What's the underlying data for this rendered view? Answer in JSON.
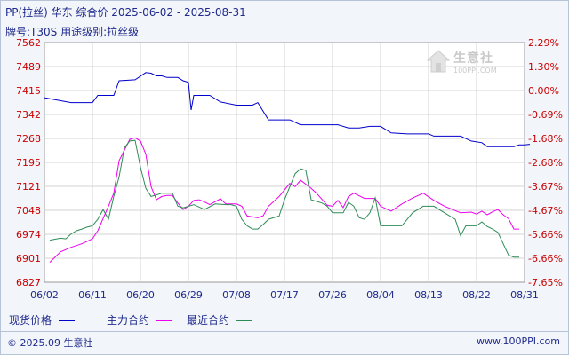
{
  "header": {
    "title": "PP(拉丝) 华东 综合价 2025-06-02 - 2025-08-31",
    "subtitle": "牌号:T30S 用途级别:拉丝级"
  },
  "watermark": {
    "text": "生意社",
    "url": "100PPI.COM"
  },
  "legend": {
    "spot": "现货价格",
    "main": "主力合约",
    "recent": "最近合约"
  },
  "footer": {
    "copyright": "© 2025.09 生意社",
    "url": "www.100PPI.com"
  },
  "colors": {
    "spot": "#0000cc",
    "main": "#ee00ee",
    "recent": "#2e8b57",
    "axis_left": "#cc0000",
    "axis_right": "#cc0000",
    "grid": "#d3d3d3",
    "plot_bg": "#ffffff",
    "text": "#1f2a8c"
  },
  "chart_data": {
    "type": "line",
    "x_ticks": [
      "06/02",
      "06/11",
      "06/20",
      "06/29",
      "07/08",
      "07/17",
      "07/26",
      "08/04",
      "08/13",
      "08/22",
      "08/31"
    ],
    "y_ticks_left": [
      "7562",
      "7489",
      "7415",
      "7342",
      "7268",
      "7195",
      "7121",
      "7048",
      "6974",
      "6901",
      "6827"
    ],
    "y_ticks_right": [
      "2.29%",
      "1.30%",
      "0.00%",
      "-0.69%",
      "-1.68%",
      "-2.68%",
      "-3.67%",
      "-4.67%",
      "-5.66%",
      "-6.66%",
      "-7.65%"
    ],
    "ylim": [
      6827,
      7562
    ],
    "grid": true,
    "series": [
      {
        "name": "现货价格",
        "key": "spot",
        "points": [
          [
            0,
            7393
          ],
          [
            5,
            7378
          ],
          [
            9,
            7378
          ],
          [
            10,
            7400
          ],
          [
            13,
            7400
          ],
          [
            14,
            7445
          ],
          [
            17,
            7448
          ],
          [
            19,
            7470
          ],
          [
            20,
            7468
          ],
          [
            21,
            7460
          ],
          [
            22,
            7460
          ],
          [
            23,
            7455
          ],
          [
            25,
            7455
          ],
          [
            26,
            7445
          ],
          [
            27,
            7440
          ],
          [
            27.5,
            7355
          ],
          [
            28,
            7400
          ],
          [
            31,
            7400
          ],
          [
            33,
            7380
          ],
          [
            36,
            7370
          ],
          [
            39,
            7370
          ],
          [
            40,
            7378
          ],
          [
            42,
            7325
          ],
          [
            46,
            7325
          ],
          [
            48,
            7310
          ],
          [
            55,
            7310
          ],
          [
            57,
            7300
          ],
          [
            59,
            7300
          ],
          [
            61,
            7305
          ],
          [
            63,
            7305
          ],
          [
            65,
            7285
          ],
          [
            68,
            7282
          ],
          [
            72,
            7282
          ],
          [
            73,
            7275
          ],
          [
            78,
            7275
          ],
          [
            80,
            7260
          ],
          [
            82,
            7255
          ],
          [
            83,
            7243
          ],
          [
            88,
            7243
          ],
          [
            89,
            7248
          ],
          [
            90,
            7248
          ],
          [
            91,
            7250
          ]
        ]
      },
      {
        "name": "主力合约",
        "key": "main",
        "points": [
          [
            1,
            6888
          ],
          [
            3,
            6920
          ],
          [
            5,
            6934
          ],
          [
            7,
            6945
          ],
          [
            9,
            6960
          ],
          [
            10,
            6985
          ],
          [
            12,
            7060
          ],
          [
            13,
            7100
          ],
          [
            14,
            7200
          ],
          [
            16,
            7265
          ],
          [
            17,
            7270
          ],
          [
            18,
            7260
          ],
          [
            19,
            7220
          ],
          [
            20,
            7120
          ],
          [
            21,
            7080
          ],
          [
            22,
            7090
          ],
          [
            23,
            7093
          ],
          [
            24,
            7093
          ],
          [
            25,
            7070
          ],
          [
            26,
            7050
          ],
          [
            27,
            7060
          ],
          [
            28,
            7078
          ],
          [
            29,
            7080
          ],
          [
            30,
            7073
          ],
          [
            31,
            7065
          ],
          [
            33,
            7083
          ],
          [
            34,
            7067
          ],
          [
            35,
            7067
          ],
          [
            36,
            7067
          ],
          [
            37,
            7060
          ],
          [
            38,
            7030
          ],
          [
            40,
            7025
          ],
          [
            41,
            7031
          ],
          [
            42,
            7060
          ],
          [
            44,
            7090
          ],
          [
            45,
            7110
          ],
          [
            46,
            7130
          ],
          [
            47,
            7120
          ],
          [
            48,
            7140
          ],
          [
            50,
            7115
          ],
          [
            51,
            7100
          ],
          [
            53,
            7063
          ],
          [
            54,
            7060
          ],
          [
            55,
            7078
          ],
          [
            56,
            7056
          ],
          [
            57,
            7090
          ],
          [
            58,
            7100
          ],
          [
            60,
            7084
          ],
          [
            62,
            7084
          ],
          [
            63,
            7060
          ],
          [
            65,
            7045
          ],
          [
            67,
            7067
          ],
          [
            69,
            7085
          ],
          [
            71,
            7100
          ],
          [
            73,
            7078
          ],
          [
            75,
            7060
          ],
          [
            78,
            7040
          ],
          [
            80,
            7042
          ],
          [
            81,
            7036
          ],
          [
            82,
            7045
          ],
          [
            83,
            7034
          ],
          [
            84,
            7043
          ],
          [
            85,
            7050
          ],
          [
            86,
            7034
          ],
          [
            87,
            7022
          ],
          [
            88,
            6990
          ],
          [
            89,
            6990
          ]
        ]
      },
      {
        "name": "最近合约",
        "key": "recent",
        "points": [
          [
            1,
            6956
          ],
          [
            3,
            6962
          ],
          [
            4,
            6960
          ],
          [
            5,
            6975
          ],
          [
            6,
            6985
          ],
          [
            7,
            6990
          ],
          [
            8,
            6996
          ],
          [
            9,
            7000
          ],
          [
            10,
            7020
          ],
          [
            11,
            7050
          ],
          [
            12,
            7020
          ],
          [
            13,
            7090
          ],
          [
            14,
            7150
          ],
          [
            15,
            7240
          ],
          [
            16,
            7260
          ],
          [
            17,
            7262
          ],
          [
            18,
            7180
          ],
          [
            19,
            7115
          ],
          [
            20,
            7090
          ],
          [
            21,
            7095
          ],
          [
            22,
            7100
          ],
          [
            24,
            7100
          ],
          [
            25,
            7060
          ],
          [
            26,
            7055
          ],
          [
            28,
            7065
          ],
          [
            30,
            7050
          ],
          [
            32,
            7067
          ],
          [
            34,
            7065
          ],
          [
            35,
            7065
          ],
          [
            36,
            7060
          ],
          [
            37,
            7020
          ],
          [
            38,
            7000
          ],
          [
            39,
            6990
          ],
          [
            40,
            6990
          ],
          [
            41,
            7004
          ],
          [
            42,
            7020
          ],
          [
            44,
            7030
          ],
          [
            45,
            7080
          ],
          [
            47,
            7160
          ],
          [
            48,
            7175
          ],
          [
            49,
            7170
          ],
          [
            50,
            7080
          ],
          [
            52,
            7070
          ],
          [
            53,
            7060
          ],
          [
            54,
            7040
          ],
          [
            56,
            7040
          ],
          [
            57,
            7072
          ],
          [
            58,
            7060
          ],
          [
            59,
            7025
          ],
          [
            60,
            7020
          ],
          [
            61,
            7040
          ],
          [
            62,
            7086
          ],
          [
            63,
            7000
          ],
          [
            65,
            7000
          ],
          [
            67,
            7000
          ],
          [
            69,
            7040
          ],
          [
            71,
            7060
          ],
          [
            73,
            7060
          ],
          [
            75,
            7040
          ],
          [
            77,
            7020
          ],
          [
            78,
            6970
          ],
          [
            79,
            7000
          ],
          [
            81,
            7000
          ],
          [
            82,
            7012
          ],
          [
            83,
            6998
          ],
          [
            84,
            6990
          ],
          [
            85,
            6980
          ],
          [
            86,
            6945
          ],
          [
            87,
            6910
          ],
          [
            88,
            6904
          ],
          [
            89,
            6904
          ]
        ]
      }
    ]
  }
}
